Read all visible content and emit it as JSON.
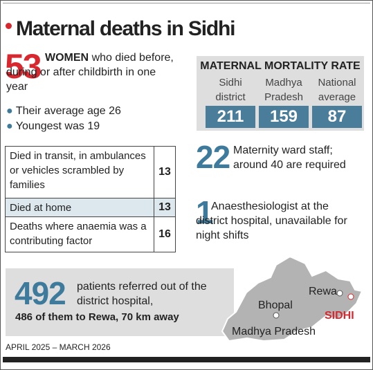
{
  "title": "Maternal deaths in Sidhi",
  "headline": {
    "value": 53,
    "emphasis": "WOMEN",
    "text": "who died before, during or after childbirth in one year"
  },
  "bullets": [
    "Their average age 26",
    "Youngest was 19"
  ],
  "table": {
    "rows": [
      [
        "Died in transit, in ambulances or vehicles scrambled by families",
        13
      ],
      [
        "Died at home",
        13
      ],
      [
        "Deaths where anaemia was a contributing factor",
        16
      ]
    ]
  },
  "mmr": {
    "title": "MATERNAL MORTALITY RATE",
    "items": [
      {
        "label": "Sidhi district",
        "value": 211
      },
      {
        "label": "Madhya Pradesh",
        "value": 159
      },
      {
        "label": "National average",
        "value": 87
      }
    ]
  },
  "staff": {
    "value": 22,
    "text": "Maternity ward staff; around 40 are required"
  },
  "anaesthesiologist": {
    "value": 1,
    "text": "Anaesthesiologist at the district hospital, unavailable for night shifts"
  },
  "referral": {
    "value": 492,
    "text": "patients referred out of the district hospital,",
    "emphasis": "486 of them to Rewa, 70 km away"
  },
  "map": {
    "state": "Madhya Pradesh",
    "cities": [
      "Bhopal",
      "Rewa",
      "SIDHI"
    ]
  },
  "footer": "APRIL 2025 – MARCH 2026"
}
